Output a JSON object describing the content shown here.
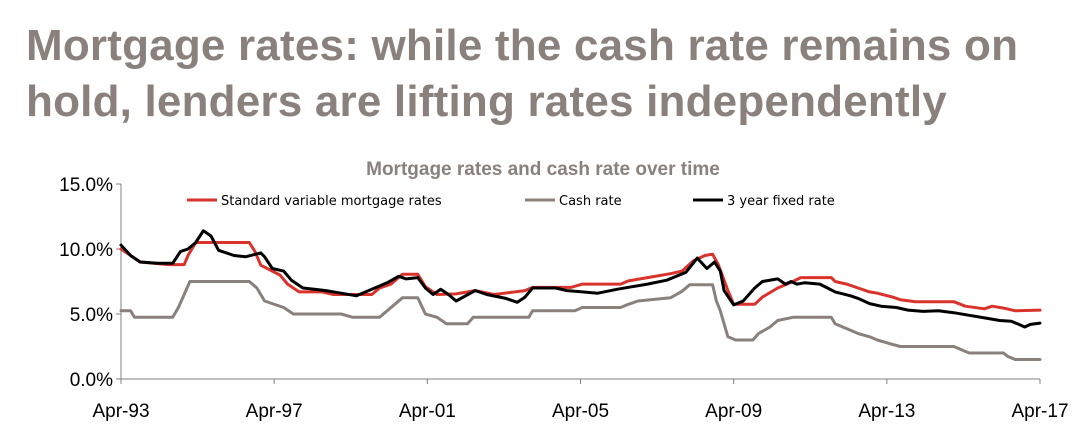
{
  "slide": {
    "title_line1": "Mortgage rates: while the cash rate remains on",
    "title_line2": "hold, lenders are lifting rates independently"
  },
  "chart_data": {
    "type": "line",
    "title": "Mortgage rates and cash rate over time",
    "xlabel": "",
    "ylabel": "",
    "x_range": [
      1993.25,
      2017.25
    ],
    "ylim": [
      0,
      15
    ],
    "y_ticks": [
      0,
      5,
      10,
      15
    ],
    "y_tick_labels": [
      "0.0%",
      "5.0%",
      "10.0%",
      "15.0%"
    ],
    "x_ticks": [
      1993.25,
      1997.25,
      2001.25,
      2005.25,
      2009.25,
      2013.25,
      2017.25
    ],
    "x_tick_labels": [
      "Apr-93",
      "Apr-97",
      "Apr-01",
      "Apr-05",
      "Apr-09",
      "Apr-13",
      "Apr-17"
    ],
    "grid": false,
    "legend_position": "top",
    "series": [
      {
        "name": "Standard variable mortgage rates",
        "color": "#d9332b",
        "points": [
          [
            1993.25,
            10.0
          ],
          [
            1993.5,
            9.5
          ],
          [
            1993.75,
            9.0
          ],
          [
            1994.5,
            8.8
          ],
          [
            1994.9,
            8.8
          ],
          [
            1995.0,
            9.5
          ],
          [
            1995.2,
            10.5
          ],
          [
            1996.4,
            10.5
          ],
          [
            1996.6,
            10.5
          ],
          [
            1996.75,
            9.8
          ],
          [
            1996.9,
            8.75
          ],
          [
            1997.4,
            8.0
          ],
          [
            1997.6,
            7.3
          ],
          [
            1997.9,
            6.7
          ],
          [
            1998.5,
            6.7
          ],
          [
            1998.8,
            6.5
          ],
          [
            1999.8,
            6.5
          ],
          [
            2000.0,
            7.0
          ],
          [
            2000.3,
            7.3
          ],
          [
            2000.6,
            8.05
          ],
          [
            2001.0,
            8.05
          ],
          [
            2001.2,
            7.1
          ],
          [
            2001.5,
            6.5
          ],
          [
            2002.0,
            6.55
          ],
          [
            2002.5,
            6.8
          ],
          [
            2003.0,
            6.5
          ],
          [
            2003.8,
            6.8
          ],
          [
            2004.0,
            7.05
          ],
          [
            2005.0,
            7.05
          ],
          [
            2005.3,
            7.3
          ],
          [
            2006.3,
            7.3
          ],
          [
            2006.5,
            7.55
          ],
          [
            2007.0,
            7.8
          ],
          [
            2007.6,
            8.1
          ],
          [
            2007.9,
            8.3
          ],
          [
            2008.2,
            9.1
          ],
          [
            2008.5,
            9.5
          ],
          [
            2008.7,
            9.6
          ],
          [
            2008.85,
            8.8
          ],
          [
            2008.95,
            8.0
          ],
          [
            2009.1,
            6.8
          ],
          [
            2009.25,
            5.75
          ],
          [
            2009.8,
            5.75
          ],
          [
            2010.0,
            6.3
          ],
          [
            2010.4,
            7.0
          ],
          [
            2010.8,
            7.5
          ],
          [
            2011.0,
            7.8
          ],
          [
            2011.8,
            7.8
          ],
          [
            2011.9,
            7.5
          ],
          [
            2012.2,
            7.3
          ],
          [
            2012.5,
            7.0
          ],
          [
            2012.8,
            6.7
          ],
          [
            2013.0,
            6.6
          ],
          [
            2013.4,
            6.3
          ],
          [
            2013.6,
            6.1
          ],
          [
            2014.0,
            5.95
          ],
          [
            2015.0,
            5.95
          ],
          [
            2015.3,
            5.6
          ],
          [
            2015.8,
            5.4
          ],
          [
            2016.0,
            5.6
          ],
          [
            2016.3,
            5.45
          ],
          [
            2016.6,
            5.25
          ],
          [
            2017.25,
            5.3
          ]
        ]
      },
      {
        "name": "Cash rate",
        "color": "#8a817c",
        "points": [
          [
            1993.25,
            5.25
          ],
          [
            1993.5,
            5.25
          ],
          [
            1993.6,
            4.75
          ],
          [
            1994.6,
            4.75
          ],
          [
            1994.75,
            5.5
          ],
          [
            1994.9,
            6.5
          ],
          [
            1995.05,
            7.5
          ],
          [
            1996.6,
            7.5
          ],
          [
            1996.8,
            7.0
          ],
          [
            1997.0,
            6.0
          ],
          [
            1997.5,
            5.5
          ],
          [
            1997.75,
            5.0
          ],
          [
            1999.0,
            5.0
          ],
          [
            1999.3,
            4.75
          ],
          [
            2000.0,
            4.75
          ],
          [
            2000.2,
            5.25
          ],
          [
            2000.4,
            5.75
          ],
          [
            2000.6,
            6.25
          ],
          [
            2001.0,
            6.25
          ],
          [
            2001.2,
            5.0
          ],
          [
            2001.5,
            4.75
          ],
          [
            2001.75,
            4.25
          ],
          [
            2002.3,
            4.25
          ],
          [
            2002.45,
            4.75
          ],
          [
            2003.9,
            4.75
          ],
          [
            2004.0,
            5.25
          ],
          [
            2005.1,
            5.25
          ],
          [
            2005.3,
            5.5
          ],
          [
            2006.3,
            5.5
          ],
          [
            2006.5,
            5.75
          ],
          [
            2006.75,
            6.0
          ],
          [
            2007.6,
            6.25
          ],
          [
            2007.9,
            6.75
          ],
          [
            2008.1,
            7.25
          ],
          [
            2008.7,
            7.25
          ],
          [
            2008.8,
            6.0
          ],
          [
            2008.9,
            5.25
          ],
          [
            2009.0,
            4.25
          ],
          [
            2009.1,
            3.25
          ],
          [
            2009.3,
            3.0
          ],
          [
            2009.75,
            3.0
          ],
          [
            2009.9,
            3.5
          ],
          [
            2010.2,
            4.0
          ],
          [
            2010.4,
            4.5
          ],
          [
            2010.8,
            4.75
          ],
          [
            2011.8,
            4.75
          ],
          [
            2011.9,
            4.25
          ],
          [
            2012.3,
            3.75
          ],
          [
            2012.5,
            3.5
          ],
          [
            2012.8,
            3.25
          ],
          [
            2013.0,
            3.0
          ],
          [
            2013.3,
            2.75
          ],
          [
            2013.6,
            2.5
          ],
          [
            2015.0,
            2.5
          ],
          [
            2015.2,
            2.25
          ],
          [
            2015.4,
            2.0
          ],
          [
            2016.3,
            2.0
          ],
          [
            2016.4,
            1.75
          ],
          [
            2016.6,
            1.5
          ],
          [
            2017.25,
            1.5
          ]
        ]
      },
      {
        "name": "3 year fixed rate",
        "color": "#000000",
        "points": [
          [
            1993.25,
            10.3
          ],
          [
            1993.5,
            9.5
          ],
          [
            1993.75,
            9.0
          ],
          [
            1994.2,
            8.9
          ],
          [
            1994.6,
            8.9
          ],
          [
            1994.8,
            9.8
          ],
          [
            1995.0,
            10.0
          ],
          [
            1995.2,
            10.5
          ],
          [
            1995.4,
            11.4
          ],
          [
            1995.6,
            11.0
          ],
          [
            1995.8,
            9.9
          ],
          [
            1996.2,
            9.5
          ],
          [
            1996.5,
            9.4
          ],
          [
            1996.9,
            9.7
          ],
          [
            1997.0,
            9.4
          ],
          [
            1997.2,
            8.5
          ],
          [
            1997.5,
            8.3
          ],
          [
            1997.7,
            7.6
          ],
          [
            1998.0,
            7.0
          ],
          [
            1998.3,
            6.9
          ],
          [
            1998.6,
            6.8
          ],
          [
            1999.0,
            6.6
          ],
          [
            1999.4,
            6.4
          ],
          [
            1999.8,
            6.9
          ],
          [
            2000.2,
            7.4
          ],
          [
            2000.5,
            7.9
          ],
          [
            2000.7,
            7.7
          ],
          [
            2001.0,
            7.8
          ],
          [
            2001.2,
            7.0
          ],
          [
            2001.4,
            6.5
          ],
          [
            2001.6,
            6.9
          ],
          [
            2001.8,
            6.5
          ],
          [
            2002.0,
            6.0
          ],
          [
            2002.5,
            6.8
          ],
          [
            2002.8,
            6.5
          ],
          [
            2003.3,
            6.2
          ],
          [
            2003.6,
            5.9
          ],
          [
            2003.8,
            6.3
          ],
          [
            2004.0,
            7.0
          ],
          [
            2004.6,
            7.0
          ],
          [
            2004.9,
            6.8
          ],
          [
            2005.3,
            6.7
          ],
          [
            2005.7,
            6.6
          ],
          [
            2006.2,
            6.9
          ],
          [
            2006.6,
            7.1
          ],
          [
            2007.0,
            7.3
          ],
          [
            2007.5,
            7.6
          ],
          [
            2008.0,
            8.2
          ],
          [
            2008.3,
            9.3
          ],
          [
            2008.55,
            8.5
          ],
          [
            2008.75,
            9.0
          ],
          [
            2008.9,
            8.3
          ],
          [
            2009.0,
            6.8
          ],
          [
            2009.25,
            5.7
          ],
          [
            2009.5,
            6.0
          ],
          [
            2009.8,
            7.0
          ],
          [
            2010.0,
            7.5
          ],
          [
            2010.4,
            7.7
          ],
          [
            2010.6,
            7.3
          ],
          [
            2010.75,
            7.5
          ],
          [
            2010.9,
            7.3
          ],
          [
            2011.1,
            7.4
          ],
          [
            2011.5,
            7.3
          ],
          [
            2011.7,
            7.0
          ],
          [
            2011.9,
            6.7
          ],
          [
            2012.3,
            6.4
          ],
          [
            2012.5,
            6.2
          ],
          [
            2012.8,
            5.8
          ],
          [
            2013.1,
            5.6
          ],
          [
            2013.5,
            5.5
          ],
          [
            2013.8,
            5.3
          ],
          [
            2014.2,
            5.2
          ],
          [
            2014.6,
            5.25
          ],
          [
            2015.0,
            5.1
          ],
          [
            2015.4,
            4.9
          ],
          [
            2015.8,
            4.7
          ],
          [
            2016.2,
            4.5
          ],
          [
            2016.5,
            4.45
          ],
          [
            2016.7,
            4.2
          ],
          [
            2016.85,
            4.0
          ],
          [
            2017.0,
            4.2
          ],
          [
            2017.25,
            4.3
          ]
        ]
      }
    ]
  }
}
